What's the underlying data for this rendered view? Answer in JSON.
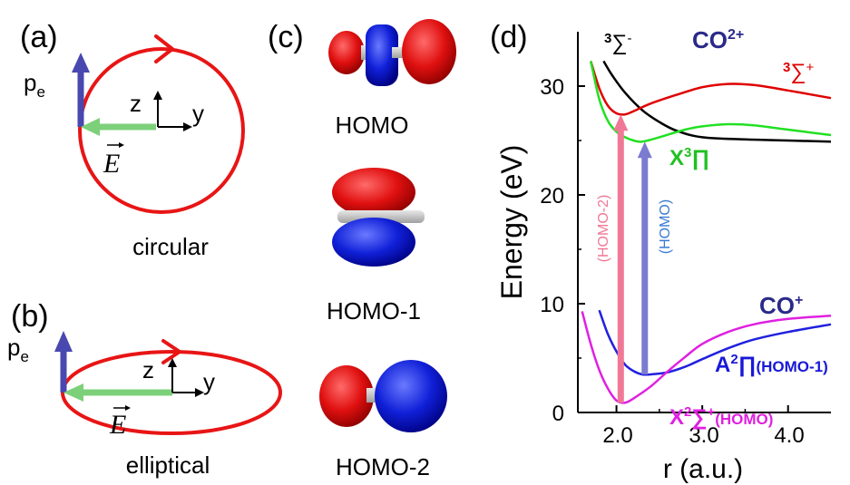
{
  "panels": {
    "a": {
      "letter": "(a)",
      "pe_main": "p",
      "pe_sub": "e",
      "z": "z",
      "y": "y",
      "E": "E",
      "caption": "circular"
    },
    "b": {
      "letter": "(b)",
      "pe_main": "p",
      "pe_sub": "e",
      "z": "z",
      "y": "y",
      "E": "E",
      "caption": "elliptical"
    },
    "c": {
      "letter": "(c)",
      "orbitals": [
        "HOMO",
        "HOMO-1",
        "HOMO-2"
      ]
    },
    "d": {
      "letter": "(d)",
      "ylabel": "Energy (eV)",
      "xlabel": "r (a.u.)",
      "yticks": [
        "0",
        "10",
        "20",
        "30"
      ],
      "xticks": [
        "2.0",
        "3.0",
        "4.0"
      ],
      "label_co2": "CO",
      "label_co2_sup": "2+",
      "label_co1": "CO",
      "label_co1_sup": "+",
      "label_3sigma_minus_sup": "3",
      "label_3sigma_minus": "∑",
      "label_3sigma_minus_chg": "-",
      "label_3sigma_plus_sup": "3",
      "label_3sigma_plus": "∑",
      "label_3sigma_plus_chg": "+",
      "label_x3pi_main": "X",
      "label_x3pi_sup": "3",
      "label_x3pi_sym": "∏",
      "label_a2pi_main": "A",
      "label_a2pi_sup": "2",
      "label_a2pi_sym": "∏",
      "label_a2pi_tag": "(HOMO-1)",
      "label_x2sigma_main": "X",
      "label_x2sigma_sup": "2",
      "label_x2sigma_sym": "∑",
      "label_x2sigma_chg": "+",
      "label_x2sigma_tag": "(HOMO)",
      "arrow_homo2": "(HOMO-2)",
      "arrow_homo": "(HOMO)"
    }
  },
  "chart_data": {
    "type": "line",
    "xlabel": "r (a.u.)",
    "ylabel": "Energy (eV)",
    "xlim": [
      1.55,
      4.5
    ],
    "ylim": [
      0,
      35
    ],
    "grid": false,
    "series": [
      {
        "name": "3∑-",
        "color": "#000000",
        "x": [
          1.85,
          1.95,
          2.1,
          2.3,
          2.5,
          2.7,
          3.0,
          3.5,
          4.0,
          4.5
        ],
        "y": [
          32.3,
          31.0,
          29.4,
          27.8,
          26.7,
          25.9,
          25.3,
          25.1,
          25.0,
          24.9
        ]
      },
      {
        "name": "3∑+",
        "color": "#e00000",
        "x": [
          1.7,
          1.8,
          1.9,
          2.0,
          2.1,
          2.2,
          2.4,
          2.7,
          3.0,
          3.3,
          3.6,
          4.0,
          4.5
        ],
        "y": [
          32.3,
          29.8,
          28.2,
          27.5,
          27.4,
          27.7,
          28.4,
          29.2,
          29.9,
          30.2,
          30.1,
          29.6,
          28.9
        ]
      },
      {
        "name": "X3∏",
        "color": "#22e022",
        "x": [
          1.7,
          1.8,
          1.9,
          2.0,
          2.1,
          2.2,
          2.3,
          2.5,
          2.8,
          3.0,
          3.3,
          3.6,
          4.0,
          4.5
        ],
        "y": [
          32.3,
          28.8,
          26.8,
          25.8,
          25.3,
          25.0,
          24.9,
          25.3,
          26.0,
          26.3,
          26.5,
          26.4,
          26.0,
          25.5
        ]
      },
      {
        "name": "CO+ upper",
        "color": "#2020e0",
        "x": [
          1.8,
          1.9,
          2.0,
          2.1,
          2.2,
          2.3,
          2.4,
          2.6,
          2.8,
          3.0,
          3.3,
          3.6,
          4.0,
          4.5
        ],
        "y": [
          9.4,
          7.2,
          5.6,
          4.4,
          3.8,
          3.5,
          3.5,
          3.7,
          4.2,
          4.9,
          5.9,
          6.7,
          7.4,
          8.1
        ]
      },
      {
        "name": "CO+ lower",
        "color": "#e020e0",
        "x": [
          1.6,
          1.7,
          1.8,
          1.9,
          2.0,
          2.1,
          2.2,
          2.4,
          2.6,
          2.8,
          3.0,
          3.3,
          3.6,
          4.0,
          4.5
        ],
        "y": [
          9.3,
          6.3,
          3.9,
          2.2,
          1.1,
          0.9,
          1.3,
          2.4,
          3.8,
          5.1,
          6.3,
          7.4,
          8.1,
          8.6,
          8.9
        ]
      }
    ],
    "arrows": [
      {
        "label": "(HOMO-2)",
        "color": "#f07896",
        "x": 2.05,
        "y_from": 0.9,
        "y_to": 27.4
      },
      {
        "label": "(HOMO)",
        "color": "#7b7bd1",
        "x": 2.33,
        "y_from": 3.5,
        "y_to": 24.9
      }
    ]
  }
}
